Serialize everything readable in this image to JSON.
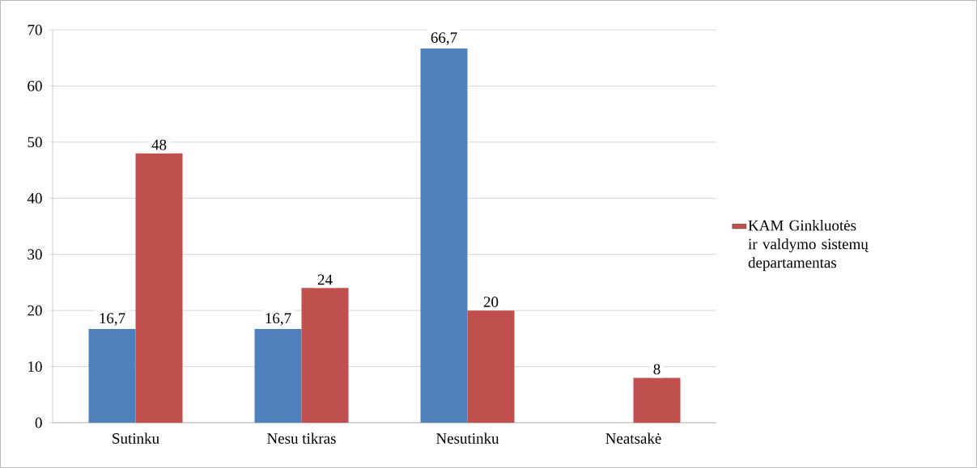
{
  "chart_data": {
    "type": "bar",
    "categories": [
      "Sutinku",
      "Nesu tikras",
      "Nesutinku",
      "Neatsakė"
    ],
    "series": [
      {
        "color": "#4f81bd",
        "values": [
          16.7,
          16.7,
          66.7,
          null
        ],
        "value_labels": [
          "16,7",
          "16,7",
          "66,7",
          null
        ]
      },
      {
        "name": "KAM Ginkluotės ir valdymo sistemų departamentas",
        "color": "#c0504d",
        "values": [
          48,
          24,
          20,
          8
        ],
        "value_labels": [
          "48",
          "24",
          "20",
          "8"
        ]
      }
    ],
    "ylim": [
      0,
      70
    ],
    "yticks": [
      0,
      10,
      20,
      30,
      40,
      50,
      60,
      70
    ],
    "grid": "y",
    "legend": "right"
  }
}
